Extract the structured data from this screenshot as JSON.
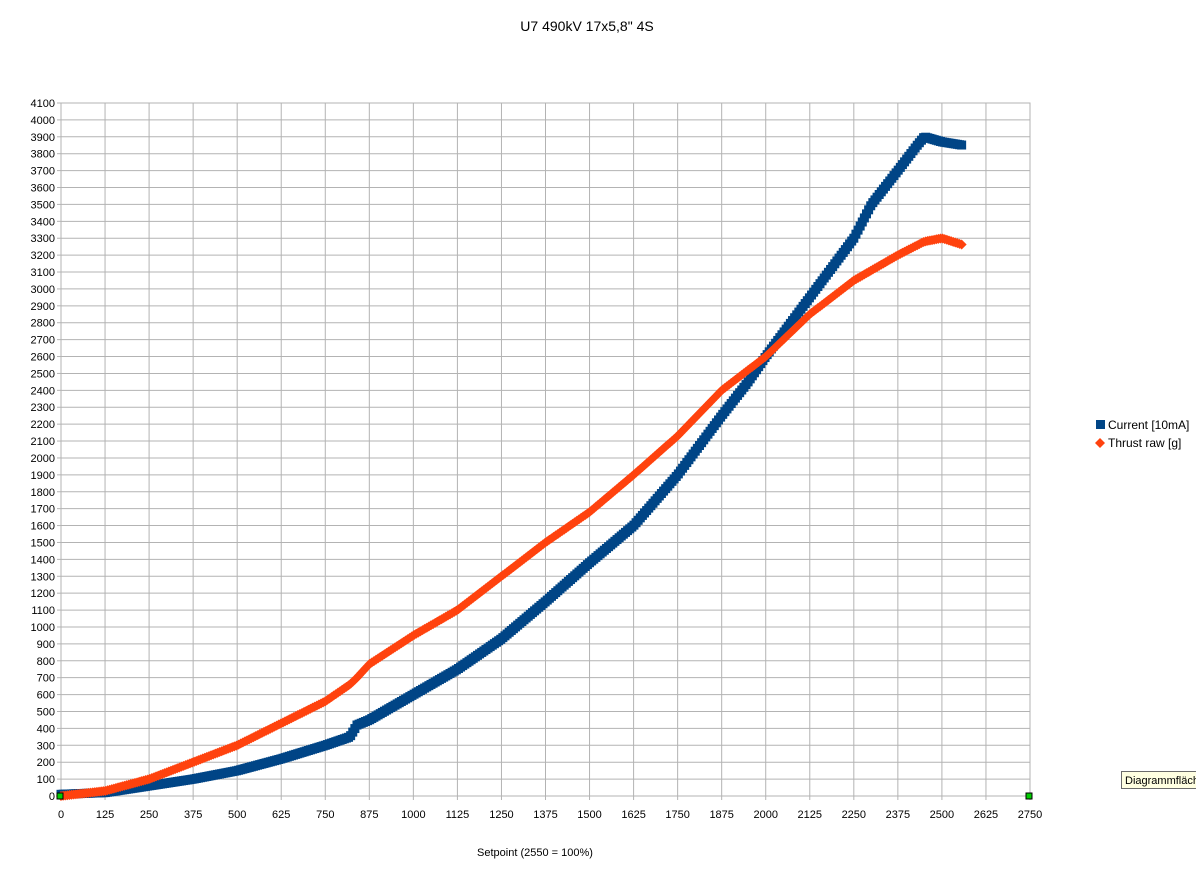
{
  "chart_data": {
    "type": "scatter",
    "title": "U7 490kV 17x5,8\" 4S",
    "xlabel": "Setpoint (2550 = 100%)",
    "ylabel": "",
    "xlim": [
      0,
      2750
    ],
    "ylim": [
      0,
      4100
    ],
    "xticks": [
      0,
      125,
      250,
      375,
      500,
      625,
      750,
      875,
      1000,
      1125,
      1250,
      1375,
      1500,
      1625,
      1750,
      1875,
      2000,
      2125,
      2250,
      2375,
      2500,
      2625,
      2750
    ],
    "yticks": [
      0,
      100,
      200,
      300,
      400,
      500,
      600,
      700,
      800,
      900,
      1000,
      1100,
      1200,
      1300,
      1400,
      1500,
      1600,
      1700,
      1800,
      1900,
      2000,
      2100,
      2200,
      2300,
      2400,
      2500,
      2600,
      2700,
      2800,
      2900,
      3000,
      3100,
      3200,
      3300,
      3400,
      3500,
      3600,
      3700,
      3800,
      3900,
      4000,
      4100
    ],
    "grid": true,
    "legend_position": "right",
    "series": [
      {
        "name": "Current [10mA]",
        "color": "#004586",
        "marker": "square",
        "x": [
          0,
          125,
          250,
          375,
          500,
          625,
          750,
          820,
          840,
          875,
          1000,
          1125,
          1250,
          1375,
          1500,
          1625,
          1750,
          1875,
          1950,
          2000,
          2125,
          2250,
          2300,
          2375,
          2430,
          2450,
          2500,
          2560
        ],
        "y": [
          10,
          20,
          60,
          100,
          150,
          220,
          300,
          350,
          420,
          450,
          600,
          750,
          930,
          1150,
          1380,
          1600,
          1900,
          2250,
          2450,
          2600,
          2950,
          3300,
          3500,
          3700,
          3850,
          3900,
          3870,
          3850
        ]
      },
      {
        "name": "Thrust raw [g]",
        "color": "#ff420e",
        "marker": "diamond",
        "x": [
          0,
          125,
          250,
          375,
          500,
          625,
          750,
          820,
          840,
          875,
          1000,
          1125,
          1250,
          1375,
          1500,
          1625,
          1750,
          1875,
          2000,
          2125,
          2250,
          2375,
          2450,
          2500,
          2560
        ],
        "y": [
          0,
          30,
          100,
          200,
          300,
          430,
          560,
          660,
          700,
          780,
          950,
          1100,
          1300,
          1500,
          1680,
          1900,
          2130,
          2400,
          2600,
          2850,
          3050,
          3200,
          3280,
          3300,
          3260
        ]
      }
    ]
  },
  "tooltip": "Diagrammfläche"
}
